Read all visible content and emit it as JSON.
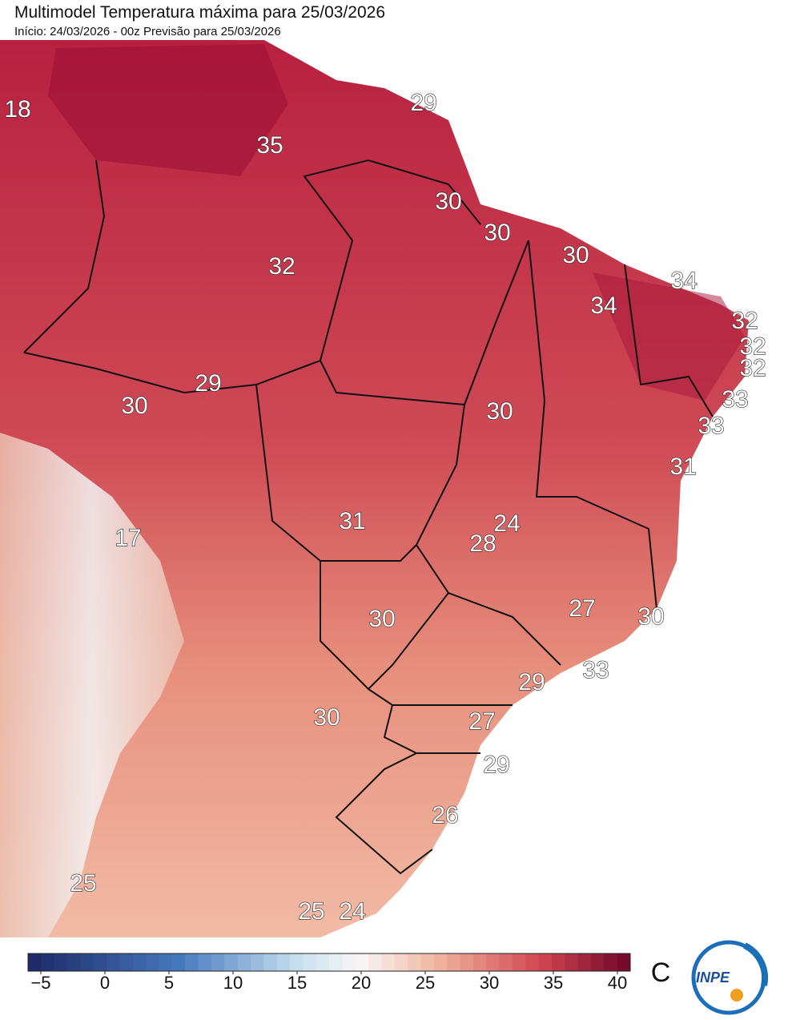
{
  "title": "Multimodel Temperatura máxima para 25/03/2026",
  "subtitle": "Início: 24/03/2026 - 00z  Previsão para 25/03/2026",
  "map_labels": [
    18,
    35,
    29,
    30,
    30,
    32,
    30,
    34,
    34,
    32,
    32,
    32,
    33,
    33,
    29,
    30,
    30,
    31,
    17,
    31,
    24,
    28,
    27,
    30,
    30,
    33,
    29,
    30,
    27,
    29,
    26,
    25,
    25,
    24
  ],
  "colorbar": {
    "lim": [
      -6,
      41
    ],
    "ticks": [
      {
        "value": -5,
        "label": "−5"
      },
      0,
      5,
      10,
      15,
      20,
      25,
      30,
      35,
      40
    ],
    "unit": "C"
  },
  "logo": "INPE"
}
